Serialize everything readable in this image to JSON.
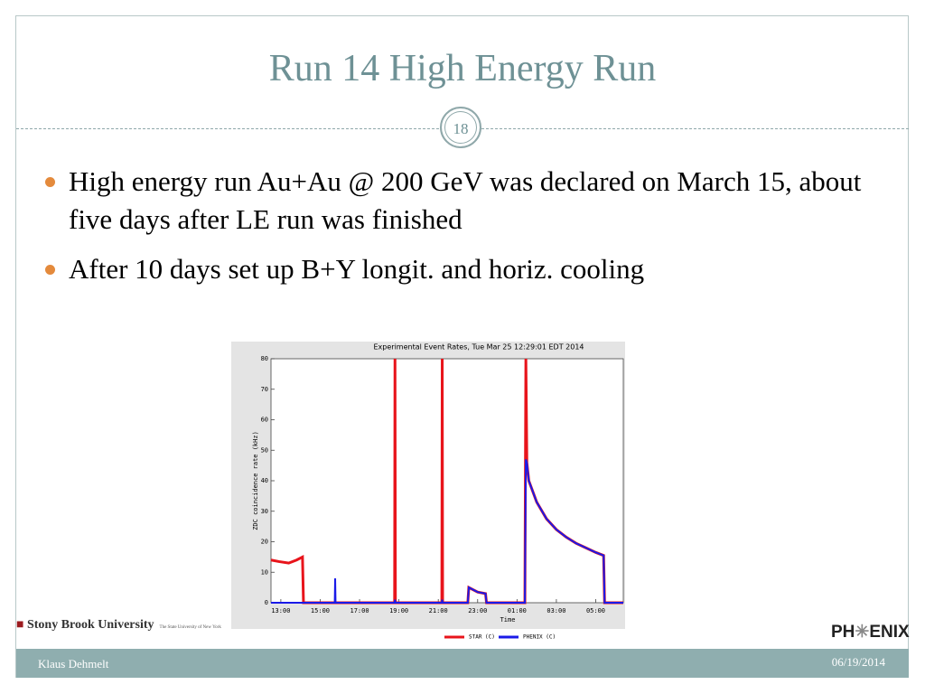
{
  "slide": {
    "title": "Run 14 High Energy Run",
    "page_number": "18",
    "bullets": [
      "High energy run Au+Au @ 200 GeV was declared on March 15, about five days after LE run was finished",
      "After 10 days set up B+Y longit. and horiz. cooling"
    ],
    "footer": {
      "author": "Klaus Dehmelt",
      "date": "06/19/2014"
    },
    "logos": {
      "university": "Stony Brook University",
      "university_sub": "The State University of New York",
      "experiment_left": "PH",
      "experiment_right": "ENIX"
    }
  },
  "chart_data": {
    "type": "line",
    "title": "Experimental Event Rates, Tue Mar 25 12:29:01 EDT 2014",
    "x_label": "Time",
    "y_label": "ZDC coincidence rate (kHz)",
    "x": [
      12.5,
      12.9,
      13.4,
      13.8,
      14.1,
      14.15,
      15.74,
      15.76,
      15.78,
      18.78,
      18.8,
      18.82,
      21.18,
      21.2,
      21.22,
      22.5,
      22.55,
      23.0,
      23.4,
      23.45,
      25.4,
      25.45,
      25.5,
      25.6,
      26.0,
      26.5,
      27.0,
      27.5,
      28.0,
      28.5,
      29.0,
      29.4,
      29.45,
      30.4
    ],
    "series": [
      {
        "name": "STAR (C)",
        "color": "#e8141b",
        "values": [
          14,
          13.5,
          13,
          14,
          15,
          0,
          0,
          0,
          0,
          0,
          80,
          0,
          0,
          80,
          0,
          0,
          5,
          3.5,
          3,
          0,
          0,
          80,
          46,
          40,
          33,
          27.5,
          24,
          21.5,
          19.5,
          18,
          16.5,
          15.5,
          0,
          0
        ]
      },
      {
        "name": "PHENIX (C)",
        "color": "#1a1ae8",
        "values": [
          0,
          0,
          0,
          0,
          0,
          0,
          0,
          8,
          0,
          0,
          1,
          0,
          0,
          1,
          0,
          0,
          5,
          3.5,
          3,
          0,
          0,
          47,
          46,
          40,
          33,
          27.5,
          24,
          21.5,
          19.5,
          18,
          16.5,
          15.5,
          0,
          0
        ]
      }
    ],
    "xlim": [
      12.5,
      30.4
    ],
    "xticks": [
      {
        "value": 13,
        "label": "13:00"
      },
      {
        "value": 15,
        "label": "15:00"
      },
      {
        "value": 17,
        "label": "17:00"
      },
      {
        "value": 19,
        "label": "19:00"
      },
      {
        "value": 21,
        "label": "21:00"
      },
      {
        "value": 23,
        "label": "23:00"
      },
      {
        "value": 25,
        "label": "01:00"
      },
      {
        "value": 27,
        "label": "03:00"
      },
      {
        "value": 29,
        "label": "05:00"
      }
    ],
    "ylim": [
      0,
      80
    ],
    "yticks": [
      0,
      10,
      20,
      30,
      40,
      50,
      60,
      70,
      80
    ],
    "grid": false
  }
}
